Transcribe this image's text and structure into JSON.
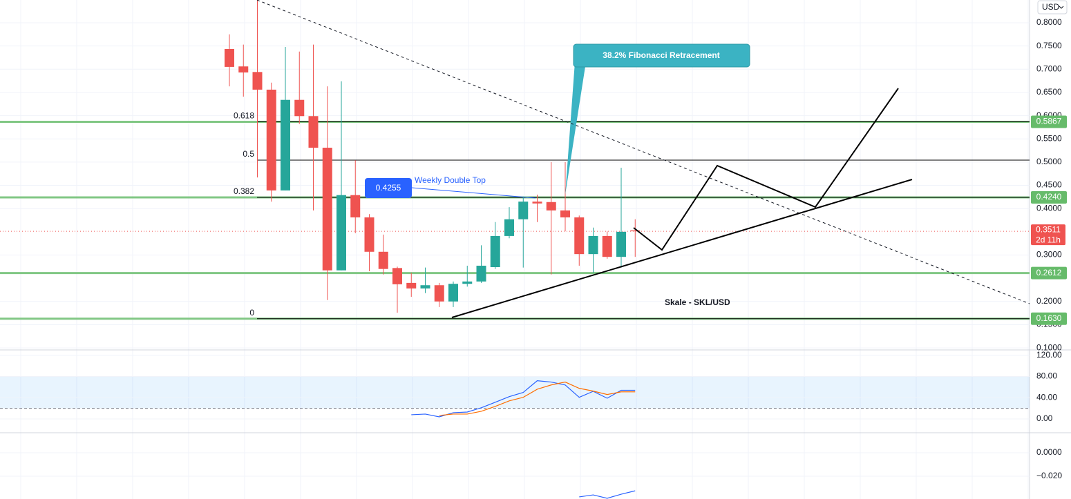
{
  "chart_data": [
    {
      "type": "candlestick",
      "title": "Skale - SKL/USD",
      "currency": "USD",
      "open": [
        0.7435,
        0.706,
        0.694,
        0.656,
        0.439,
        0.634,
        0.599,
        0.531,
        0.267,
        0.429,
        0.381,
        0.307,
        0.272,
        0.24,
        0.228,
        0.235,
        0.2,
        0.238,
        0.243,
        0.274,
        0.341,
        0.377,
        0.415,
        0.414,
        0.396,
        0.381,
        0.302,
        0.341,
        0.296,
        0.353
      ],
      "high": [
        0.775,
        0.753,
        0.849,
        0.671,
        0.748,
        0.738,
        0.753,
        0.663,
        0.674,
        0.504,
        0.388,
        0.344,
        0.275,
        0.262,
        0.273,
        0.24,
        0.243,
        0.277,
        0.321,
        0.371,
        0.403,
        0.426,
        0.43,
        0.5,
        0.5,
        0.385,
        0.359,
        0.351,
        0.488,
        0.377
      ],
      "low": [
        0.663,
        0.641,
        0.467,
        0.415,
        0.439,
        0.582,
        0.396,
        0.203,
        0.267,
        0.347,
        0.265,
        0.258,
        0.176,
        0.21,
        0.218,
        0.188,
        0.188,
        0.232,
        0.24,
        0.27,
        0.336,
        0.273,
        0.371,
        0.258,
        0.351,
        0.277,
        0.262,
        0.292,
        0.273,
        0.296
      ],
      "close": [
        0.705,
        0.693,
        0.656,
        0.439,
        0.634,
        0.599,
        0.531,
        0.267,
        0.429,
        0.381,
        0.307,
        0.27,
        0.237,
        0.228,
        0.235,
        0.2,
        0.238,
        0.243,
        0.277,
        0.341,
        0.377,
        0.415,
        0.411,
        0.396,
        0.381,
        0.302,
        0.341,
        0.296,
        0.35,
        0.3511
      ],
      "up_color": "#26a69a",
      "down_color": "#ef5350",
      "ylim": [
        0.0957,
        0.849
      ],
      "yticks": [
        {
          "value": 0.8,
          "label": "0.8000"
        },
        {
          "value": 0.75,
          "label": "0.7500"
        },
        {
          "value": 0.7,
          "label": "0.7000"
        },
        {
          "value": 0.65,
          "label": "0.6500"
        },
        {
          "value": 0.6,
          "label": "0.6000"
        },
        {
          "value": 0.55,
          "label": "0.5500"
        },
        {
          "value": 0.5,
          "label": "0.5000"
        },
        {
          "value": 0.45,
          "label": "0.4500"
        },
        {
          "value": 0.4,
          "label": "0.4000"
        },
        {
          "value": 0.3,
          "label": "0.3000"
        },
        {
          "value": 0.2,
          "label": "0.2000"
        },
        {
          "value": 0.15,
          "label": "0.1500"
        },
        {
          "value": 0.1,
          "label": "0.1000"
        }
      ],
      "grid": true,
      "levels": [
        0.5867,
        {
          "value": 0.424,
          "label": "0.4240"
        },
        0.2612,
        {
          "value": 0.163,
          "label": "0.1630"
        }
      ],
      "level_color": "#81c784",
      "fibonacci": [
        {
          "ratio": 0.618,
          "price": 0.5867
        },
        {
          "ratio": 0.5,
          "price": 0.5043
        },
        {
          "ratio": 0.382,
          "price": 0.424
        },
        {
          "ratio": 0,
          "price": 0.163
        }
      ],
      "last_price": 0.3511,
      "countdown": "2d 11h",
      "callout": "38.2% Fibonacci Retracement",
      "double_top": {
        "price": 0.4255,
        "label": "Weekly Double Top"
      }
    },
    {
      "type": "line",
      "ylim": [
        -26,
        130
      ],
      "yticks": [
        {
          "value": 120,
          "label": "120.00"
        },
        {
          "value": 80,
          "label": "80.00"
        },
        {
          "value": 40,
          "label": "40.00"
        },
        {
          "value": 0,
          "label": "0.00"
        }
      ],
      "bands": [
        20,
        80
      ],
      "series": [
        {
          "color": "#2962ff",
          "values": [
            null,
            null,
            null,
            null,
            null,
            null,
            null,
            null,
            null,
            null,
            null,
            null,
            null,
            7.9,
            9.2,
            3.9,
            11.8,
            13,
            21,
            31.5,
            42,
            50,
            72,
            69.5,
            64,
            40.7,
            52,
            39,
            54,
            54
          ]
        },
        {
          "color": "#ff6d00",
          "values": [
            null,
            null,
            null,
            null,
            null,
            null,
            null,
            null,
            null,
            null,
            null,
            null,
            null,
            null,
            null,
            6.6,
            9.2,
            9.2,
            14.4,
            23.6,
            34,
            40.7,
            56,
            64,
            69.5,
            57.7,
            52.5,
            46,
            51,
            51
          ]
        }
      ]
    },
    {
      "type": "line",
      "ylim": [
        -0.0394,
        0.0171
      ],
      "yticks": [
        {
          "value": 0,
          "label": "0.0000"
        },
        {
          "value": -0.02,
          "label": "−0.020"
        }
      ],
      "series": [
        {
          "color": "#2962ff",
          "values": [
            null,
            null,
            null,
            null,
            null,
            null,
            null,
            null,
            null,
            null,
            null,
            null,
            null,
            null,
            null,
            null,
            null,
            null,
            null,
            null,
            null,
            null,
            null,
            null,
            null,
            -0.0376,
            -0.0359,
            -0.0388,
            -0.0353,
            -0.0324
          ]
        }
      ]
    }
  ]
}
